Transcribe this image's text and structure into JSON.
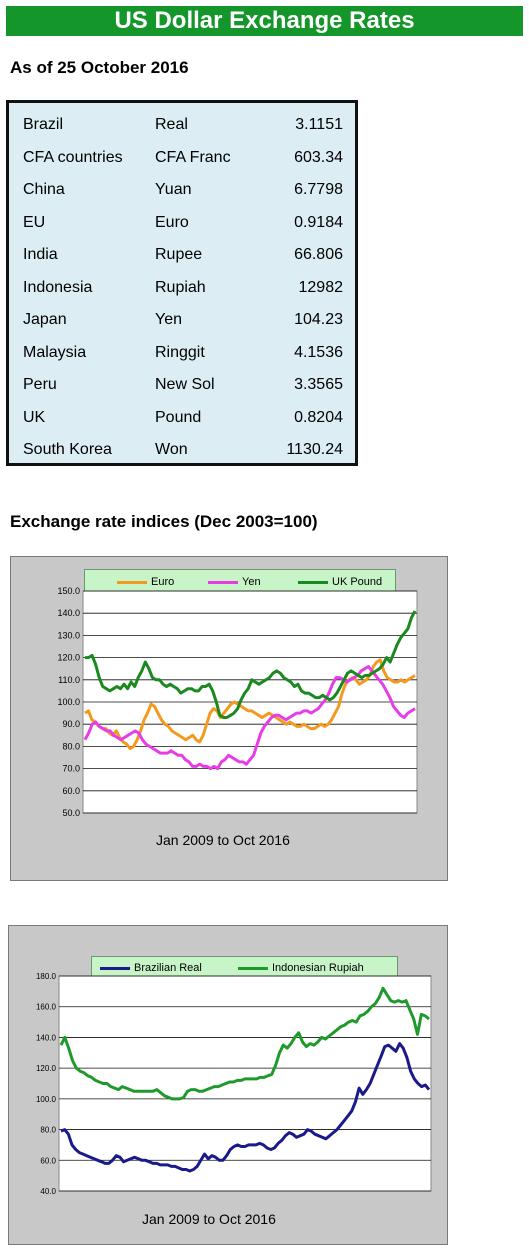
{
  "header": {
    "title": "US Dollar Exchange Rates",
    "as_of": "As of 25 October 2016"
  },
  "rates": [
    {
      "country": "Brazil",
      "currency": "Real",
      "value": "3.1151"
    },
    {
      "country": "CFA countries",
      "currency": "CFA Franc",
      "value": "603.34"
    },
    {
      "country": "China",
      "currency": "Yuan",
      "value": "6.7798"
    },
    {
      "country": "EU",
      "currency": "Euro",
      "value": "0.9184"
    },
    {
      "country": "India",
      "currency": "Rupee",
      "value": "66.806"
    },
    {
      "country": "Indonesia",
      "currency": "Rupiah",
      "value": "12982"
    },
    {
      "country": "Japan",
      "currency": "Yen",
      "value": "104.23"
    },
    {
      "country": "Malaysia",
      "currency": "Ringgit",
      "value": "4.1536"
    },
    {
      "country": "Peru",
      "currency": "New Sol",
      "value": "3.3565"
    },
    {
      "country": "UK",
      "currency": "Pound",
      "value": "0.8204"
    },
    {
      "country": "South Korea",
      "currency": "Won",
      "value": "1130.24"
    }
  ],
  "section_title": "Exchange rate indices (Dec 2003=100)",
  "chart_data": [
    {
      "type": "line",
      "xlabel": "Jan 2009 to Oct 2016",
      "ylim": [
        50,
        150
      ],
      "yticks": [
        "50.0",
        "60.0",
        "70.0",
        "80.0",
        "90.0",
        "100.0",
        "110.0",
        "120.0",
        "130.0",
        "140.0",
        "150.0"
      ],
      "legend_position": "top",
      "grid": true,
      "series": [
        {
          "name": "Euro",
          "color": "#f39a1e",
          "values": [
            95,
            96,
            92,
            91,
            89,
            88,
            88,
            86,
            85,
            87,
            84,
            82,
            81,
            79,
            80,
            83,
            87,
            92,
            95,
            99,
            98,
            95,
            92,
            90,
            89,
            87,
            86,
            85,
            84,
            83,
            84,
            85,
            83,
            82,
            85,
            90,
            95,
            97,
            96,
            93,
            95,
            97,
            99,
            100,
            99,
            98,
            97,
            96,
            96,
            95,
            94,
            93,
            94,
            95,
            94,
            93,
            92,
            91,
            90,
            91,
            90,
            89,
            89,
            90,
            89,
            88,
            88,
            89,
            90,
            89,
            90,
            92,
            95,
            98,
            104,
            108,
            110,
            111,
            110,
            108,
            109,
            110,
            112,
            116,
            118,
            119,
            114,
            111,
            110,
            109,
            109,
            110,
            109,
            110,
            111,
            112
          ]
        },
        {
          "name": "Yen",
          "color": "#e63de6",
          "values": [
            83,
            86,
            90,
            91,
            89,
            88,
            87,
            87,
            85,
            84,
            83,
            84,
            85,
            86,
            87,
            86,
            83,
            81,
            80,
            79,
            78,
            77,
            77,
            77,
            78,
            77,
            76,
            76,
            74,
            73,
            71,
            71,
            72,
            71,
            71,
            70,
            71,
            70,
            73,
            74,
            76,
            75,
            74,
            73,
            73,
            72,
            74,
            76,
            81,
            86,
            89,
            91,
            93,
            94,
            94,
            93,
            92,
            93,
            94,
            95,
            95,
            96,
            96,
            95,
            96,
            97,
            99,
            101,
            104,
            108,
            111,
            111,
            110,
            109,
            110,
            111,
            112,
            114,
            115,
            116,
            114,
            112,
            110,
            108,
            105,
            102,
            98,
            96,
            94,
            93,
            95,
            96,
            97
          ]
        },
        {
          "name": "UK Pound",
          "color": "#1a8a1e",
          "values": [
            120,
            120,
            121,
            117,
            111,
            107,
            106,
            105,
            106,
            107,
            106,
            108,
            106,
            109,
            107,
            111,
            114,
            118,
            115,
            111,
            110,
            110,
            108,
            107,
            108,
            107,
            106,
            104,
            105,
            106,
            106,
            105,
            105,
            107,
            107,
            108,
            105,
            100,
            94,
            93,
            93,
            94,
            95,
            97,
            101,
            104,
            106,
            110,
            109,
            108,
            109,
            110,
            111,
            113,
            114,
            113,
            111,
            110,
            109,
            107,
            108,
            105,
            104,
            104,
            103,
            102,
            102,
            103,
            102,
            101,
            102,
            104,
            107,
            110,
            113,
            114,
            113,
            112,
            111,
            112,
            112,
            113,
            114,
            115,
            117,
            120,
            118,
            122,
            126,
            129,
            131,
            133,
            138,
            141
          ]
        }
      ]
    },
    {
      "type": "line",
      "xlabel": "Jan 2009 to Oct 2016",
      "ylim": [
        40,
        180
      ],
      "yticks": [
        "40.0",
        "60.0",
        "80.0",
        "100.0",
        "120.0",
        "140.0",
        "160.0",
        "180.0"
      ],
      "legend_position": "top",
      "grid": true,
      "series": [
        {
          "name": "Brazilian Real",
          "color": "#1a1a8a",
          "values": [
            79,
            80,
            77,
            70,
            67,
            65,
            64,
            63,
            62,
            61,
            60,
            59,
            58,
            58,
            60,
            63,
            62,
            59,
            60,
            61,
            62,
            61,
            60,
            60,
            59,
            58,
            58,
            57,
            57,
            57,
            56,
            56,
            55,
            54,
            54,
            53,
            54,
            56,
            60,
            64,
            61,
            63,
            62,
            60,
            60,
            63,
            67,
            69,
            70,
            69,
            69,
            70,
            70,
            70,
            71,
            70,
            68,
            67,
            68,
            71,
            73,
            76,
            78,
            77,
            75,
            76,
            77,
            80,
            79,
            77,
            76,
            75,
            74,
            76,
            78,
            80,
            83,
            86,
            89,
            92,
            98,
            107,
            103,
            106,
            110,
            116,
            122,
            128,
            134,
            135,
            133,
            131,
            136,
            133,
            127,
            118,
            113,
            110,
            108,
            109,
            106
          ]
        },
        {
          "name": "Indonesian Rupiah",
          "color": "#1f9a2a",
          "values": [
            135,
            140,
            133,
            125,
            120,
            118,
            117,
            115,
            114,
            112,
            111,
            110,
            110,
            108,
            107,
            106,
            108,
            107,
            106,
            105,
            105,
            105,
            105,
            105,
            105,
            106,
            104,
            102,
            101,
            100,
            100,
            100,
            101,
            105,
            106,
            106,
            105,
            105,
            106,
            107,
            108,
            108,
            109,
            110,
            111,
            111,
            112,
            112,
            113,
            113,
            113,
            113,
            114,
            114,
            115,
            116,
            122,
            130,
            135,
            133,
            136,
            140,
            143,
            137,
            134,
            136,
            135,
            137,
            140,
            139,
            141,
            143,
            145,
            147,
            148,
            150,
            151,
            150,
            154,
            155,
            157,
            160,
            162,
            166,
            172,
            168,
            164,
            163,
            164,
            163,
            164,
            158,
            152,
            142,
            155,
            154,
            152
          ]
        }
      ]
    }
  ]
}
